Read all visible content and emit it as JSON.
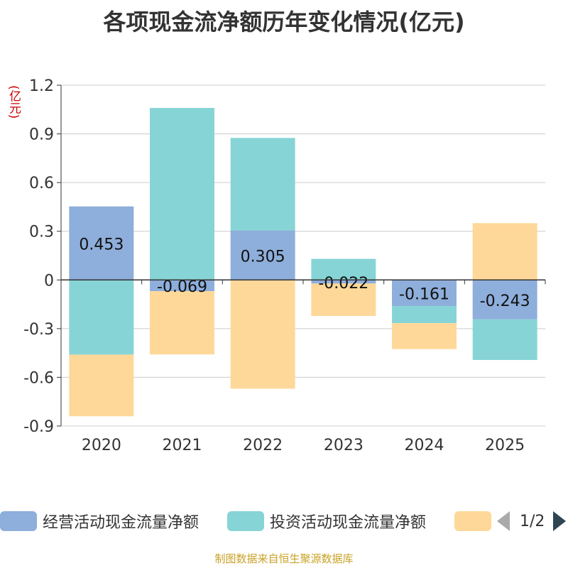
{
  "chart_data": {
    "type": "bar",
    "stacked": true,
    "title": "各项现金流净额历年变化情况(亿元)",
    "ylabel": "(亿元)",
    "categories": [
      "2020",
      "2021",
      "2022",
      "2023",
      "2024",
      "2025"
    ],
    "ylim": [
      -0.9,
      1.2
    ],
    "yticks": [
      1.2,
      0.9,
      0.6,
      0.3,
      0,
      -0.3,
      -0.6,
      -0.9
    ],
    "ytick_labels": [
      "1.2",
      "0.9",
      "0.6",
      "0.3",
      "0",
      "-0.3",
      "-0.6",
      "-0.9"
    ],
    "series": [
      {
        "name": "经营活动现金流量净额",
        "color": "#8eaedb",
        "values": [
          0.453,
          -0.069,
          0.305,
          -0.022,
          -0.161,
          -0.243
        ],
        "labels": [
          "0.453",
          "-0.069",
          "0.305",
          "-0.022",
          "-0.161",
          "-0.243"
        ]
      },
      {
        "name": "投资活动现金流量净额",
        "color": "#86d4d6",
        "values": [
          -0.46,
          1.06,
          0.57,
          0.13,
          -0.105,
          -0.25
        ]
      },
      {
        "name": "",
        "color": "#fed899",
        "values": [
          -0.38,
          -0.39,
          -0.67,
          -0.2,
          -0.16,
          0.35
        ]
      }
    ]
  },
  "legend": {
    "item1": "经营活动现金流量净额",
    "item2": "投资活动现金流量净额",
    "page": "1/2"
  },
  "source": "制图数据来自恒生聚源数据库"
}
